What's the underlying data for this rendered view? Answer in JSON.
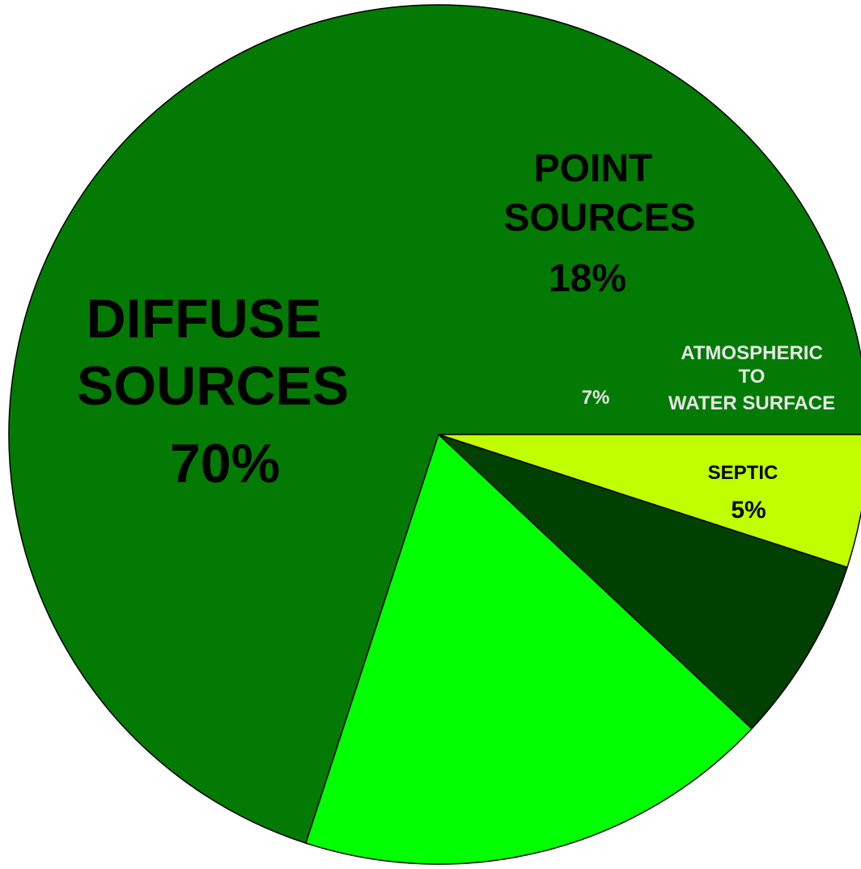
{
  "chart_data": {
    "type": "pie",
    "slices": [
      {
        "name": "DIFFUSE SOURCES",
        "label_lines": [
          "DIFFUSE",
          "SOURCES"
        ],
        "value_label": "70%",
        "value": 70,
        "color": "#037a03",
        "text_color": "#000000"
      },
      {
        "name": "POINT SOURCES",
        "label_lines": [
          "POINT",
          "SOURCES"
        ],
        "value_label": "18%",
        "value": 18,
        "color": "#00ff00",
        "text_color": "#000000"
      },
      {
        "name": "ATMOSPHERIC TO WATER SURFACE",
        "label_lines": [
          "ATMOSPHERIC",
          "TO",
          "WATER SURFACE"
        ],
        "value_label": "7%",
        "value": 7,
        "color": "#004000",
        "text_color": "#e6e6e6"
      },
      {
        "name": "SEPTIC",
        "label_lines": [
          "SEPTIC"
        ],
        "value_label": "5%",
        "value": 5,
        "color": "#bfff00",
        "text_color": "#000000"
      }
    ],
    "start_angle_deg": 0,
    "direction": "counterclockwise",
    "border_color": "#000000"
  }
}
